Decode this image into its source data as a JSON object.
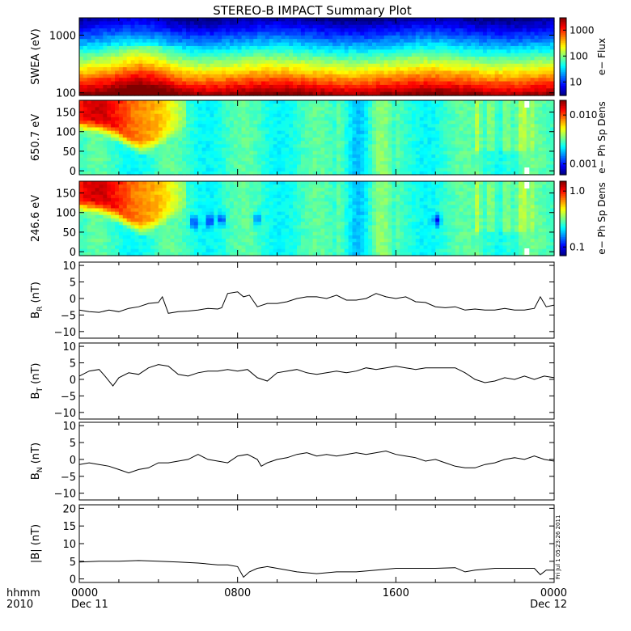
{
  "title": "STEREO-B IMPACT Summary Plot",
  "stamp": "Fri Jul 1 05:23:26 2011",
  "colors": {
    "axis": "#000000",
    "trace": "#000000",
    "background": "#ffffff"
  },
  "xaxis": {
    "corner_top": "hhmm",
    "corner_bottom": "2010",
    "ticks": [
      {
        "t": 0,
        "top": "0000",
        "bottom": "Dec 11"
      },
      {
        "t": 8,
        "top": "0800",
        "bottom": ""
      },
      {
        "t": 16,
        "top": "1600",
        "bottom": ""
      },
      {
        "t": 24,
        "top": "0000",
        "bottom": "Dec 12"
      }
    ],
    "range_hours": [
      0,
      24
    ]
  },
  "chart_data": [
    {
      "type": "heatmap",
      "id": "swea",
      "ylabel": "SWEA (eV)",
      "ylog": true,
      "ylim": [
        90,
        2000
      ],
      "yticks": [
        {
          "v": 100,
          "label": "100"
        },
        {
          "v": 1000,
          "label": "1000"
        }
      ],
      "colorbar": {
        "label": "e− Flux",
        "log": true,
        "range": [
          3,
          3000
        ],
        "ticks": [
          {
            "v": 10,
            "label": "10"
          },
          {
            "v": 100,
            "label": "100"
          },
          {
            "v": 1000,
            "label": "1000"
          }
        ]
      }
    },
    {
      "type": "heatmap",
      "id": "pad650",
      "ylabel": "650.7 eV",
      "ylog": false,
      "ylim": [
        -10,
        180
      ],
      "yticks": [
        {
          "v": 0,
          "label": "0"
        },
        {
          "v": 50,
          "label": "50"
        },
        {
          "v": 100,
          "label": "100"
        },
        {
          "v": 150,
          "label": "150"
        }
      ],
      "colorbar": {
        "label": "e− Ph Sp Dens",
        "log": true,
        "range": [
          0.0006,
          0.02
        ],
        "ticks": [
          {
            "v": 0.001,
            "label": "0.001"
          },
          {
            "v": 0.01,
            "label": "0.010"
          }
        ]
      }
    },
    {
      "type": "heatmap",
      "id": "pad246",
      "ylabel": "246.6 eV",
      "ylog": false,
      "ylim": [
        -10,
        180
      ],
      "yticks": [
        {
          "v": 0,
          "label": "0"
        },
        {
          "v": 50,
          "label": "50"
        },
        {
          "v": 100,
          "label": "100"
        },
        {
          "v": 150,
          "label": "150"
        }
      ],
      "colorbar": {
        "label": "e− Ph Sp Dens",
        "log": true,
        "range": [
          0.07,
          1.5
        ],
        "ticks": [
          {
            "v": 0.1,
            "label": "0.1"
          },
          {
            "v": 1.0,
            "label": "1.0"
          }
        ]
      }
    },
    {
      "type": "line",
      "id": "br",
      "ylabel": "B",
      "ylabel_sub": "R",
      "ylabel_unit": "(nT)",
      "ylim": [
        -12,
        11
      ],
      "yticks": [
        {
          "v": -10,
          "label": "−10"
        },
        {
          "v": -5,
          "label": "−5"
        },
        {
          "v": 0,
          "label": "0"
        },
        {
          "v": 5,
          "label": "5"
        },
        {
          "v": 10,
          "label": "10"
        }
      ],
      "x": [
        0,
        0.5,
        1,
        1.5,
        2,
        2.5,
        3,
        3.5,
        4,
        4.2,
        4.5,
        5,
        5.5,
        6,
        6.5,
        7,
        7.2,
        7.5,
        8,
        8.3,
        8.6,
        9,
        9.5,
        10,
        10.5,
        11,
        11.5,
        12,
        12.5,
        13,
        13.5,
        14,
        14.5,
        15,
        15.5,
        16,
        16.5,
        17,
        17.5,
        18,
        18.5,
        19,
        19.5,
        20,
        20.5,
        21,
        21.5,
        22,
        22.5,
        23,
        23.3,
        23.6,
        24
      ],
      "y": [
        -3.5,
        -4,
        -4.2,
        -3.5,
        -4,
        -3,
        -2.5,
        -1.5,
        -1.2,
        0.5,
        -4.5,
        -4,
        -3.8,
        -3.5,
        -3,
        -3.2,
        -2.8,
        1.5,
        2,
        0.5,
        1,
        -2.5,
        -1.5,
        -1.5,
        -1,
        0,
        0.5,
        0.5,
        0,
        1,
        -0.5,
        -0.5,
        0,
        1.5,
        0.5,
        0,
        0.5,
        -1,
        -1.2,
        -2.5,
        -2.8,
        -2.5,
        -3.5,
        -3.2,
        -3.5,
        -3.5,
        -3,
        -3.5,
        -3.5,
        -3,
        0.5,
        -2.5,
        -2
      ]
    },
    {
      "type": "line",
      "id": "bt",
      "ylabel": "B",
      "ylabel_sub": "T",
      "ylabel_unit": "(nT)",
      "ylim": [
        -12,
        11
      ],
      "yticks": [
        {
          "v": -10,
          "label": "−10"
        },
        {
          "v": -5,
          "label": "−5"
        },
        {
          "v": 0,
          "label": "0"
        },
        {
          "v": 5,
          "label": "5"
        },
        {
          "v": 10,
          "label": "10"
        }
      ],
      "x": [
        0,
        0.5,
        1,
        1.3,
        1.7,
        2,
        2.5,
        3,
        3.5,
        4,
        4.5,
        5,
        5.5,
        6,
        6.5,
        7,
        7.5,
        8,
        8.5,
        9,
        9.5,
        10,
        10.5,
        11,
        11.5,
        12,
        12.5,
        13,
        13.5,
        14,
        14.5,
        15,
        15.5,
        16,
        16.5,
        17,
        17.5,
        18,
        18.5,
        19,
        19.5,
        20,
        20.5,
        21,
        21.5,
        22,
        22.5,
        23,
        23.5,
        24
      ],
      "y": [
        1,
        2.5,
        3,
        1,
        -2,
        0.5,
        2,
        1.5,
        3.5,
        4.5,
        4,
        1.5,
        1,
        2,
        2.5,
        2.5,
        3,
        2.5,
        3,
        0.5,
        -0.5,
        2,
        2.5,
        3,
        2,
        1.5,
        2,
        2.5,
        2,
        2.5,
        3.5,
        3,
        3.5,
        4,
        3.5,
        3,
        3.5,
        3.5,
        3.5,
        3.5,
        2,
        0,
        -1,
        -0.5,
        0.5,
        0,
        1,
        0,
        1,
        0.5
      ]
    },
    {
      "type": "line",
      "id": "bn",
      "ylabel": "B",
      "ylabel_sub": "N",
      "ylabel_unit": "(nT)",
      "ylim": [
        -12,
        11
      ],
      "yticks": [
        {
          "v": -10,
          "label": "−10"
        },
        {
          "v": -5,
          "label": "−5"
        },
        {
          "v": 0,
          "label": "0"
        },
        {
          "v": 5,
          "label": "5"
        },
        {
          "v": 10,
          "label": "10"
        }
      ],
      "x": [
        0,
        0.5,
        1,
        1.5,
        2,
        2.5,
        3,
        3.5,
        4,
        4.5,
        5,
        5.5,
        6,
        6.5,
        7,
        7.5,
        8,
        8.5,
        9,
        9.2,
        9.5,
        10,
        10.5,
        11,
        11.5,
        12,
        12.5,
        13,
        13.5,
        14,
        14.5,
        15,
        15.5,
        16,
        16.5,
        17,
        17.5,
        18,
        18.5,
        19,
        19.5,
        20,
        20.5,
        21,
        21.5,
        22,
        22.5,
        23,
        23.5,
        24
      ],
      "y": [
        -1.5,
        -1,
        -1.5,
        -2,
        -3,
        -4,
        -3,
        -2.5,
        -1,
        -1,
        -0.5,
        0,
        1.5,
        0,
        -0.5,
        -1,
        1,
        1.5,
        0,
        -2,
        -1,
        0,
        0.5,
        1.5,
        2,
        1,
        1.5,
        1,
        1.5,
        2,
        1.5,
        2,
        2.5,
        1.5,
        1,
        0.5,
        -0.5,
        0,
        -1,
        -2,
        -2.5,
        -2.5,
        -1.5,
        -1,
        0,
        0.5,
        0,
        1,
        0,
        -0.5
      ]
    },
    {
      "type": "line",
      "id": "bmag",
      "ylabel": "|B|",
      "ylabel_unit": "(nT)",
      "ylim": [
        -1,
        21
      ],
      "yticks": [
        {
          "v": 0,
          "label": "0"
        },
        {
          "v": 5,
          "label": "5"
        },
        {
          "v": 10,
          "label": "10"
        },
        {
          "v": 15,
          "label": "15"
        },
        {
          "v": 20,
          "label": "20"
        }
      ],
      "x": [
        0,
        1,
        2,
        3,
        4,
        5,
        6,
        7,
        7.5,
        8,
        8.3,
        8.6,
        9,
        9.5,
        10,
        11,
        12,
        13,
        14,
        15,
        16,
        17,
        18,
        19,
        19.5,
        20,
        21,
        22,
        23,
        23.3,
        23.6,
        24
      ],
      "y": [
        4.8,
        5,
        5,
        5.2,
        5,
        4.8,
        4.5,
        4,
        4,
        3.5,
        0.5,
        2,
        3,
        3.5,
        3,
        2,
        1.5,
        2,
        2,
        2.5,
        3,
        3,
        3,
        3.2,
        2,
        2.5,
        3,
        3,
        3,
        1.2,
        2.5,
        2.5
      ]
    }
  ]
}
